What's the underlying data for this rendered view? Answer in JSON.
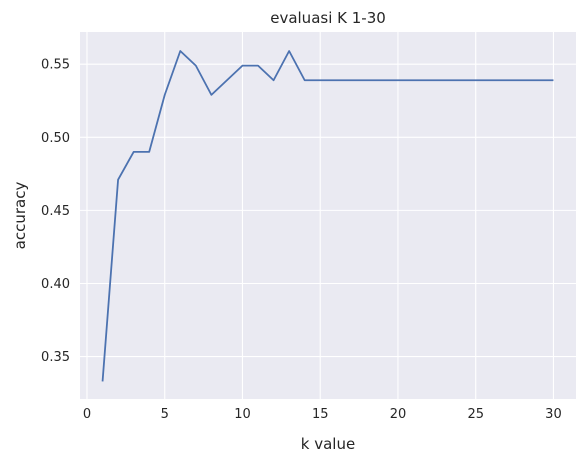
{
  "chart_data": {
    "type": "line",
    "title": "evaluasi K 1-30",
    "xlabel": "k value",
    "ylabel": "accuracy",
    "xlim": [
      -0.45,
      31.45
    ],
    "ylim": [
      0.321,
      0.572
    ],
    "xticks": [
      0,
      5,
      10,
      15,
      20,
      25,
      30
    ],
    "xtick_labels": [
      "0",
      "5",
      "10",
      "15",
      "20",
      "25",
      "30"
    ],
    "yticks": [
      0.35,
      0.4,
      0.45,
      0.5,
      0.55
    ],
    "ytick_labels": [
      "0.35",
      "0.40",
      "0.45",
      "0.50",
      "0.55"
    ],
    "grid": true,
    "background": "#eaeaf2",
    "series": [
      {
        "color": "#4c72b0",
        "x": [
          1,
          2,
          3,
          4,
          5,
          6,
          7,
          8,
          9,
          10,
          11,
          12,
          13,
          14,
          15,
          16,
          17,
          18,
          19,
          20,
          21,
          22,
          23,
          24,
          25,
          26,
          27,
          28,
          29,
          30
        ],
        "y": [
          0.333,
          0.471,
          0.49,
          0.49,
          0.529,
          0.559,
          0.549,
          0.529,
          0.539,
          0.549,
          0.549,
          0.539,
          0.559,
          0.539,
          0.539,
          0.539,
          0.539,
          0.539,
          0.539,
          0.539,
          0.539,
          0.539,
          0.539,
          0.539,
          0.539,
          0.539,
          0.539,
          0.539,
          0.539,
          0.539
        ]
      }
    ]
  }
}
